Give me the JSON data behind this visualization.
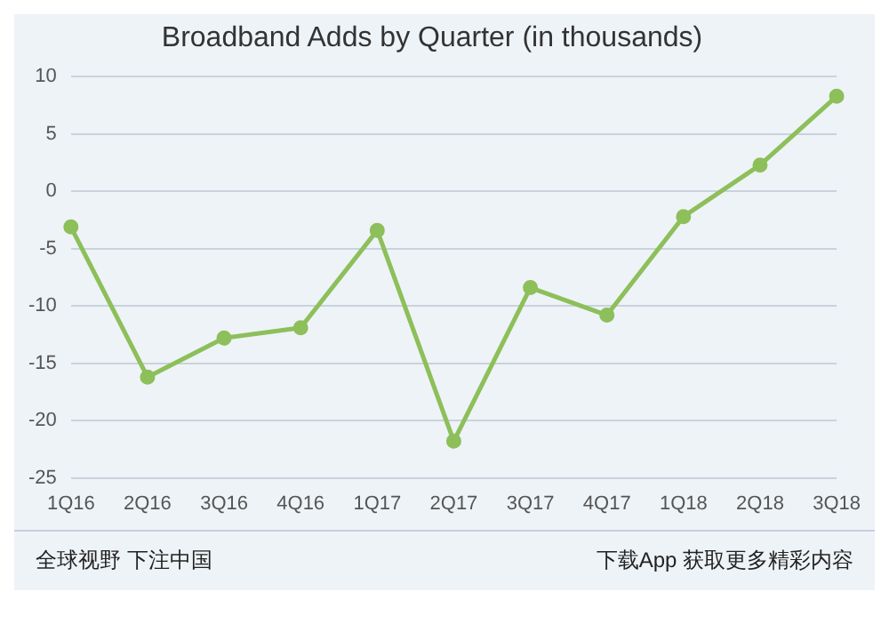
{
  "chart_data": {
    "type": "line",
    "title": "Broadband Adds by Quarter (in thousands)",
    "categories": [
      "1Q16",
      "2Q16",
      "3Q16",
      "4Q16",
      "1Q17",
      "2Q17",
      "3Q17",
      "4Q17",
      "1Q18",
      "2Q18",
      "3Q18"
    ],
    "series": [
      {
        "color": "#8dbf5a",
        "values": [
          -3.1,
          -16.2,
          -12.8,
          -11.9,
          -3.4,
          -21.8,
          -8.4,
          -10.8,
          -2.2,
          2.3,
          8.3
        ]
      }
    ],
    "ylim": [
      -25,
      10
    ],
    "yticks": [
      -25,
      -20,
      -15,
      -10,
      -5,
      0,
      5,
      10
    ],
    "grid": "y",
    "legend": false,
    "marker": "circle",
    "line_style": "solid",
    "annotations": [
      "全球视野 下注中国",
      "下载App 获取更多精彩内容"
    ]
  }
}
